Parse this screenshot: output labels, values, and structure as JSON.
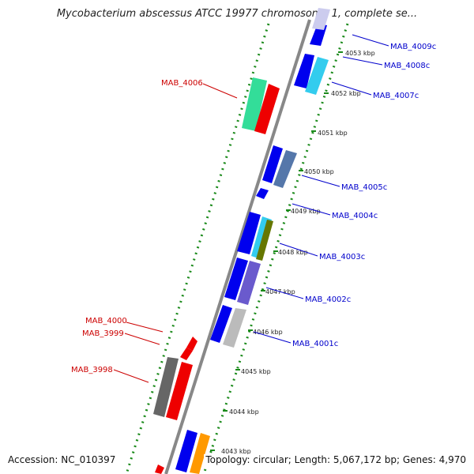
{
  "title": "Mycobacterium abscessus ATCC 19977 chromosome 1, complete se...",
  "footer": {
    "accession": "Accession: NC_010397",
    "summary": "Topology: circular; Length: 5,067,172 bp; Genes: 4,970"
  },
  "colors": {
    "forward_label": "#0000cc",
    "reverse_label": "#cc0000",
    "backbone": "#888888",
    "dotted_guide": "#1a8a1a"
  },
  "ticks": [
    "4053 kbp",
    "4052 kbp",
    "4051 kbp",
    "4050 kbp",
    "4049 kbp",
    "4048 kbp",
    "4047 kbp",
    "4046 kbp",
    "4045 kbp",
    "4044 kbp",
    "4043 kbp"
  ],
  "gene_labels_right": [
    "MAB_4009c",
    "MAB_4008c",
    "MAB_4007c",
    "MAB_4005c",
    "MAB_4004c",
    "MAB_4003c",
    "MAB_4002c",
    "MAB_4001c"
  ],
  "gene_labels_left": [
    "MAB_4006",
    "MAB_4000",
    "MAB_3999",
    "MAB_3998"
  ]
}
